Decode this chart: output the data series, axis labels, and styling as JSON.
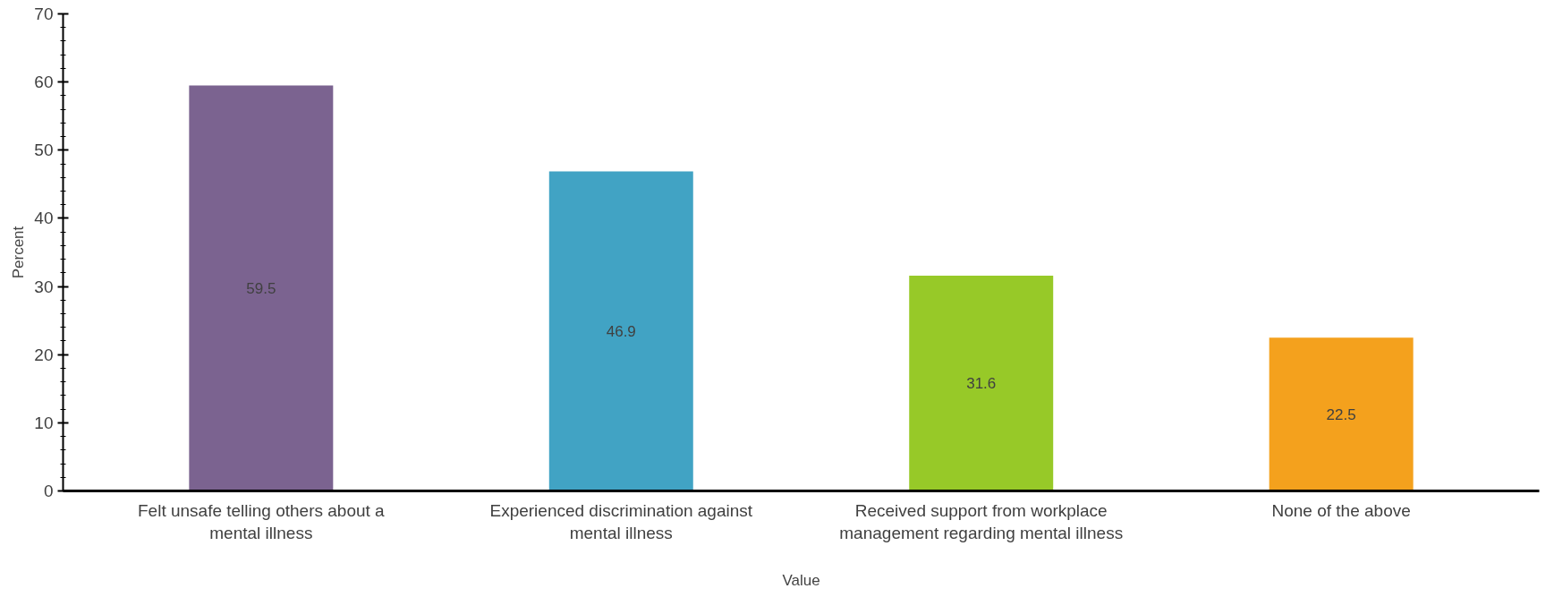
{
  "chart_data": {
    "type": "bar",
    "xlabel": "Value",
    "ylabel": "Percent",
    "categories": [
      "Felt unsafe telling others about a mental illness",
      "Experienced discrimination against mental illness",
      "Received support from workplace management regarding mental illness",
      "None of the above"
    ],
    "values": [
      59.5,
      46.9,
      31.6,
      22.5
    ],
    "colors": [
      "#7b6390",
      "#41a3c4",
      "#97c928",
      "#f4a11d"
    ],
    "ylim": [
      0,
      70
    ],
    "yticks": [
      0,
      10,
      20,
      30,
      40,
      50,
      60,
      70
    ],
    "data_labels": true,
    "grid": false
  }
}
